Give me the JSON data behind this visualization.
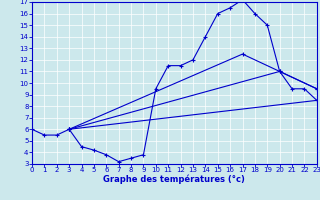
{
  "title": "Graphe des températures (°c)",
  "bg_color": "#cce8ec",
  "line_color": "#0000cc",
  "xlim": [
    0,
    23
  ],
  "ylim": [
    3,
    17
  ],
  "xticks": [
    0,
    1,
    2,
    3,
    4,
    5,
    6,
    7,
    8,
    9,
    10,
    11,
    12,
    13,
    14,
    15,
    16,
    17,
    18,
    19,
    20,
    21,
    22,
    23
  ],
  "yticks": [
    3,
    4,
    5,
    6,
    7,
    8,
    9,
    10,
    11,
    12,
    13,
    14,
    15,
    16,
    17
  ],
  "series": [
    {
      "x": [
        0,
        1,
        2,
        3,
        4,
        5,
        6,
        7,
        8,
        9,
        10,
        11,
        12,
        13,
        14,
        15,
        16,
        17,
        18,
        19,
        20,
        21,
        22,
        23
      ],
      "y": [
        6,
        5.5,
        5.5,
        6,
        4.5,
        4.2,
        3.8,
        3.2,
        3.5,
        3.8,
        9.5,
        11.5,
        11.5,
        12.0,
        14.0,
        16.0,
        16.5,
        17.2,
        16.0,
        15.0,
        11.0,
        9.5,
        9.5,
        8.5
      ]
    },
    {
      "x": [
        3,
        23
      ],
      "y": [
        6,
        8.5
      ]
    },
    {
      "x": [
        3,
        20,
        23
      ],
      "y": [
        6,
        11.0,
        9.5
      ]
    },
    {
      "x": [
        3,
        17,
        23
      ],
      "y": [
        6,
        12.5,
        9.5
      ]
    }
  ]
}
